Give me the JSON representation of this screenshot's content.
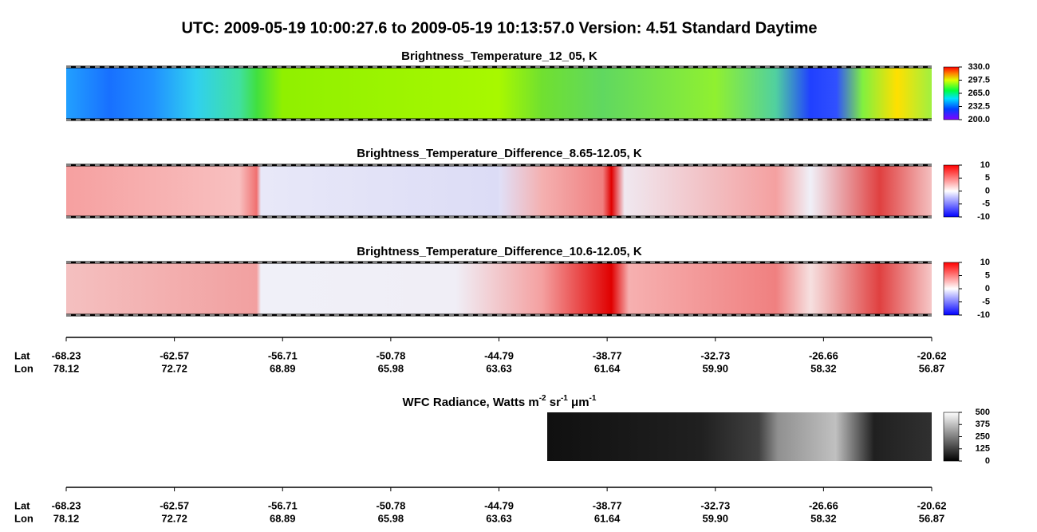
{
  "title": "UTC:  2009-05-19   10:00:27.6  to  2009-05-19   10:13:57.0    Version: 4.51  Standard Daytime",
  "panels": [
    {
      "title": "Brightness_Temperature_12_05, K",
      "colorbar_ticks": [
        {
          "value": 330,
          "label": "330.0"
        },
        {
          "value": 297.5,
          "label": "297.5"
        },
        {
          "value": 265,
          "label": "265.0"
        },
        {
          "value": 232.5,
          "label": "232.5"
        },
        {
          "value": 200,
          "label": "200.0"
        }
      ]
    },
    {
      "title": "Brightness_Temperature_Difference_8.65-12.05, K",
      "colorbar_ticks": [
        10,
        5,
        0,
        -5,
        -10
      ]
    },
    {
      "title": "Brightness_Temperature_Difference_10.6-12.05, K",
      "colorbar_ticks": [
        10,
        5,
        0,
        -5,
        -10
      ]
    },
    {
      "title_parts": [
        "WFC Radiance, Watts m",
        "-2",
        " sr",
        "-1",
        " μm",
        "-1"
      ],
      "colorbar_ticks": [
        500,
        375,
        250,
        125,
        0
      ]
    }
  ],
  "axes": [
    {
      "lat_label": "Lat",
      "lon_label": "Lon",
      "lat": [
        "-68.23",
        "-62.57",
        "-56.71",
        "-50.78",
        "-44.79",
        "-38.77",
        "-32.73",
        "-26.66",
        "-20.62"
      ],
      "lon": [
        "78.12",
        "72.72",
        "68.89",
        "65.98",
        "63.63",
        "61.64",
        "59.90",
        "58.32",
        "56.87"
      ]
    },
    {
      "lat_label": "Lat",
      "lon_label": "Lon",
      "lat": [
        "-68.23",
        "-62.57",
        "-56.71",
        "-50.78",
        "-44.79",
        "-38.77",
        "-32.73",
        "-26.66",
        "-20.62"
      ],
      "lon": [
        "78.12",
        "72.72",
        "68.89",
        "65.98",
        "63.63",
        "61.64",
        "59.90",
        "58.32",
        "56.87"
      ]
    }
  ]
}
